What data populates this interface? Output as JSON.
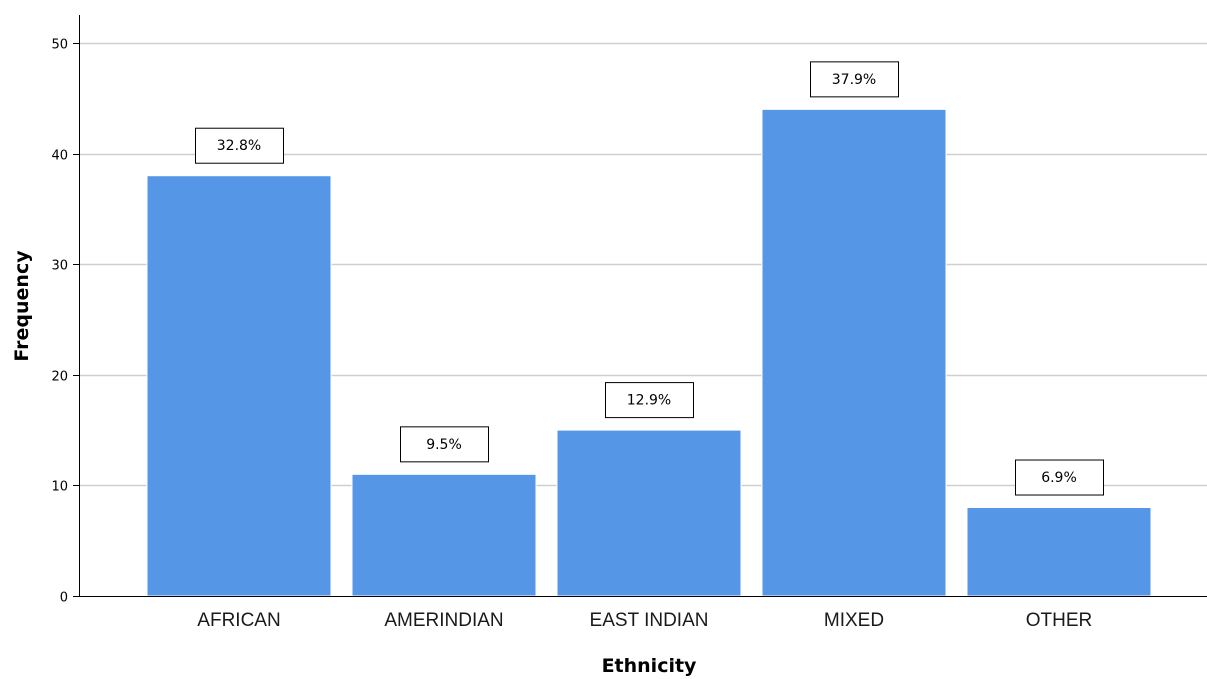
{
  "chart_data": {
    "type": "bar",
    "categories": [
      "AFRICAN",
      "AMERINDIAN",
      "EAST INDIAN",
      "MIXED",
      "OTHER"
    ],
    "values": [
      38,
      11,
      15,
      44,
      8
    ],
    "data_labels": [
      "32.8%",
      "9.5%",
      "12.9%",
      "37.9%",
      "6.9%"
    ],
    "title": "",
    "xlabel": "Ethnicity",
    "ylabel": "Frequency",
    "ylim": [
      0,
      50
    ],
    "yticks": [
      "0",
      "10",
      "20",
      "30",
      "40",
      "50"
    ],
    "grid": true,
    "legend": "none",
    "colors": {
      "bar": "#5596e6",
      "bar_edge": "#ffffff",
      "grid": "#cfcfcf",
      "axis": "#000000",
      "label_box_border": "#000000",
      "label_box_fill": "#ffffff"
    }
  }
}
